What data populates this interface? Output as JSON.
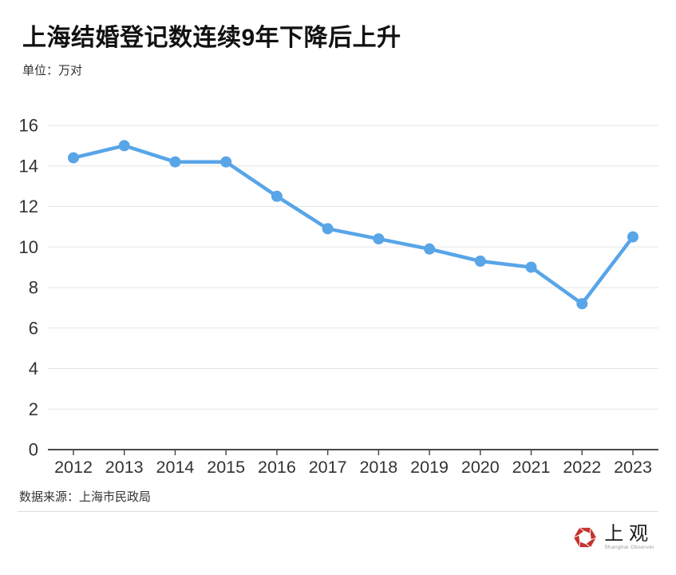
{
  "header": {
    "title": "上海结婚登记数连续9年下降后上升",
    "subtitle": "单位：万对"
  },
  "chart_data": {
    "type": "line",
    "title": "上海结婚登记数连续9年下降后上升",
    "unit_label": "单位：万对",
    "categories": [
      "2012",
      "2013",
      "2014",
      "2015",
      "2016",
      "2017",
      "2018",
      "2019",
      "2020",
      "2021",
      "2022",
      "2023"
    ],
    "series": [
      {
        "name": "结婚登记数",
        "values": [
          14.4,
          15.0,
          14.2,
          14.2,
          12.5,
          10.9,
          10.4,
          9.9,
          9.3,
          9.0,
          7.2,
          10.5
        ]
      }
    ],
    "ylim": [
      0,
      16
    ],
    "yticks": [
      0,
      2,
      4,
      6,
      8,
      10,
      12,
      14,
      16
    ],
    "grid": true,
    "legend": "none",
    "line_color": "#58A5E8",
    "grid_color": "#E6E6E6",
    "axis_color": "#4a4a4a",
    "label_color": "#333333"
  },
  "footer": {
    "source": "数据来源：上海市民政局",
    "logo": {
      "name": "上观",
      "subtitle": "Shanghai Observer",
      "color": "#C5342F"
    }
  }
}
